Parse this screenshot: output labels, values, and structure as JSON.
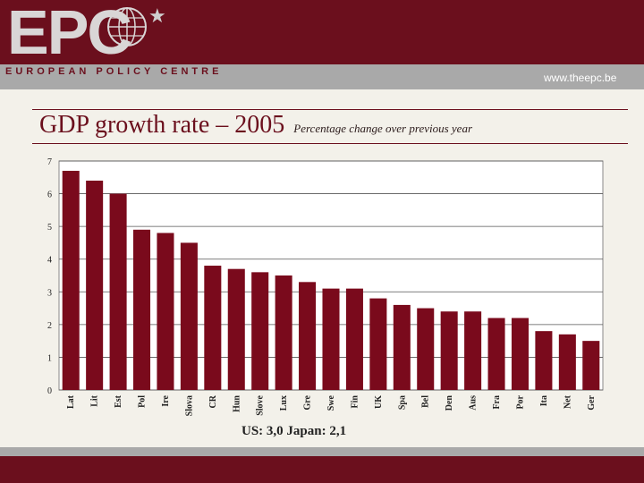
{
  "header": {
    "logo": "EPC",
    "logo_subtitle": "EUROPEAN POLICY CENTRE",
    "url": "www.theepc.be"
  },
  "slide": {
    "title": "GDP growth rate – 2005",
    "subtitle": "Percentage change over previous year",
    "note": "US: 3,0 Japan: 2,1"
  },
  "colors": {
    "bar": "#7a0a1c",
    "header": "#6b0f1d",
    "stripe": "#a9a9a9"
  },
  "chart_data": {
    "type": "bar",
    "title": "",
    "xlabel": "",
    "ylabel": "",
    "ylim": [
      0,
      7
    ],
    "yticks": [
      0,
      1,
      2,
      3,
      4,
      5,
      6,
      7
    ],
    "grid": true,
    "categories": [
      "Lat",
      "Lit",
      "Est",
      "Pol",
      "Ire",
      "Slova",
      "CR",
      "Hun",
      "Slove",
      "Lux",
      "Gre",
      "Swe",
      "Fin",
      "UK",
      "Spa",
      "Bel",
      "Den",
      "Aus",
      "Fra",
      "Por",
      "Ita",
      "Net",
      "Ger"
    ],
    "values": [
      6.7,
      6.4,
      6.0,
      4.9,
      4.8,
      4.5,
      3.8,
      3.7,
      3.6,
      3.5,
      3.3,
      3.1,
      3.1,
      2.8,
      2.6,
      2.5,
      2.4,
      2.4,
      2.2,
      2.2,
      1.8,
      1.7,
      1.5
    ]
  }
}
